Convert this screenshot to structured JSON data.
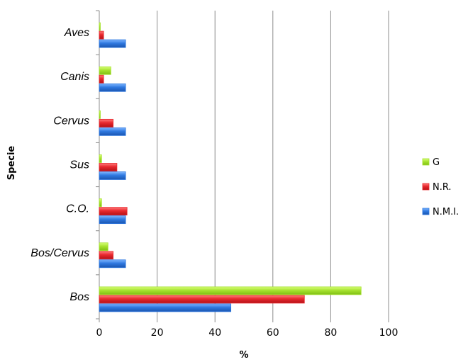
{
  "chart_data": {
    "type": "bar",
    "orientation": "horizontal",
    "categories": [
      "Aves",
      "Canis",
      "Cervus",
      "Sus",
      "C.O.",
      "Bos/Cervus",
      "Bos"
    ],
    "series": [
      {
        "name": "G",
        "color": "#a6e22e",
        "values": [
          0.3,
          4,
          0.3,
          0.8,
          0.8,
          3,
          90.5
        ]
      },
      {
        "name": "N.R.",
        "color": "#e8282d",
        "values": [
          1.5,
          1.5,
          4.8,
          6.1,
          9.6,
          4.8,
          70.9
        ]
      },
      {
        "name": "N.M.I.",
        "color": "#2f79e0",
        "values": [
          9.1,
          9.1,
          9.1,
          9.1,
          9.1,
          9.1,
          45.5
        ]
      }
    ],
    "xlabel": "%",
    "ylabel": "Specie",
    "xlim": [
      0,
      100
    ],
    "xticks": [
      0,
      20,
      40,
      60,
      80,
      100
    ],
    "grid": "vertical",
    "legend": "right"
  }
}
